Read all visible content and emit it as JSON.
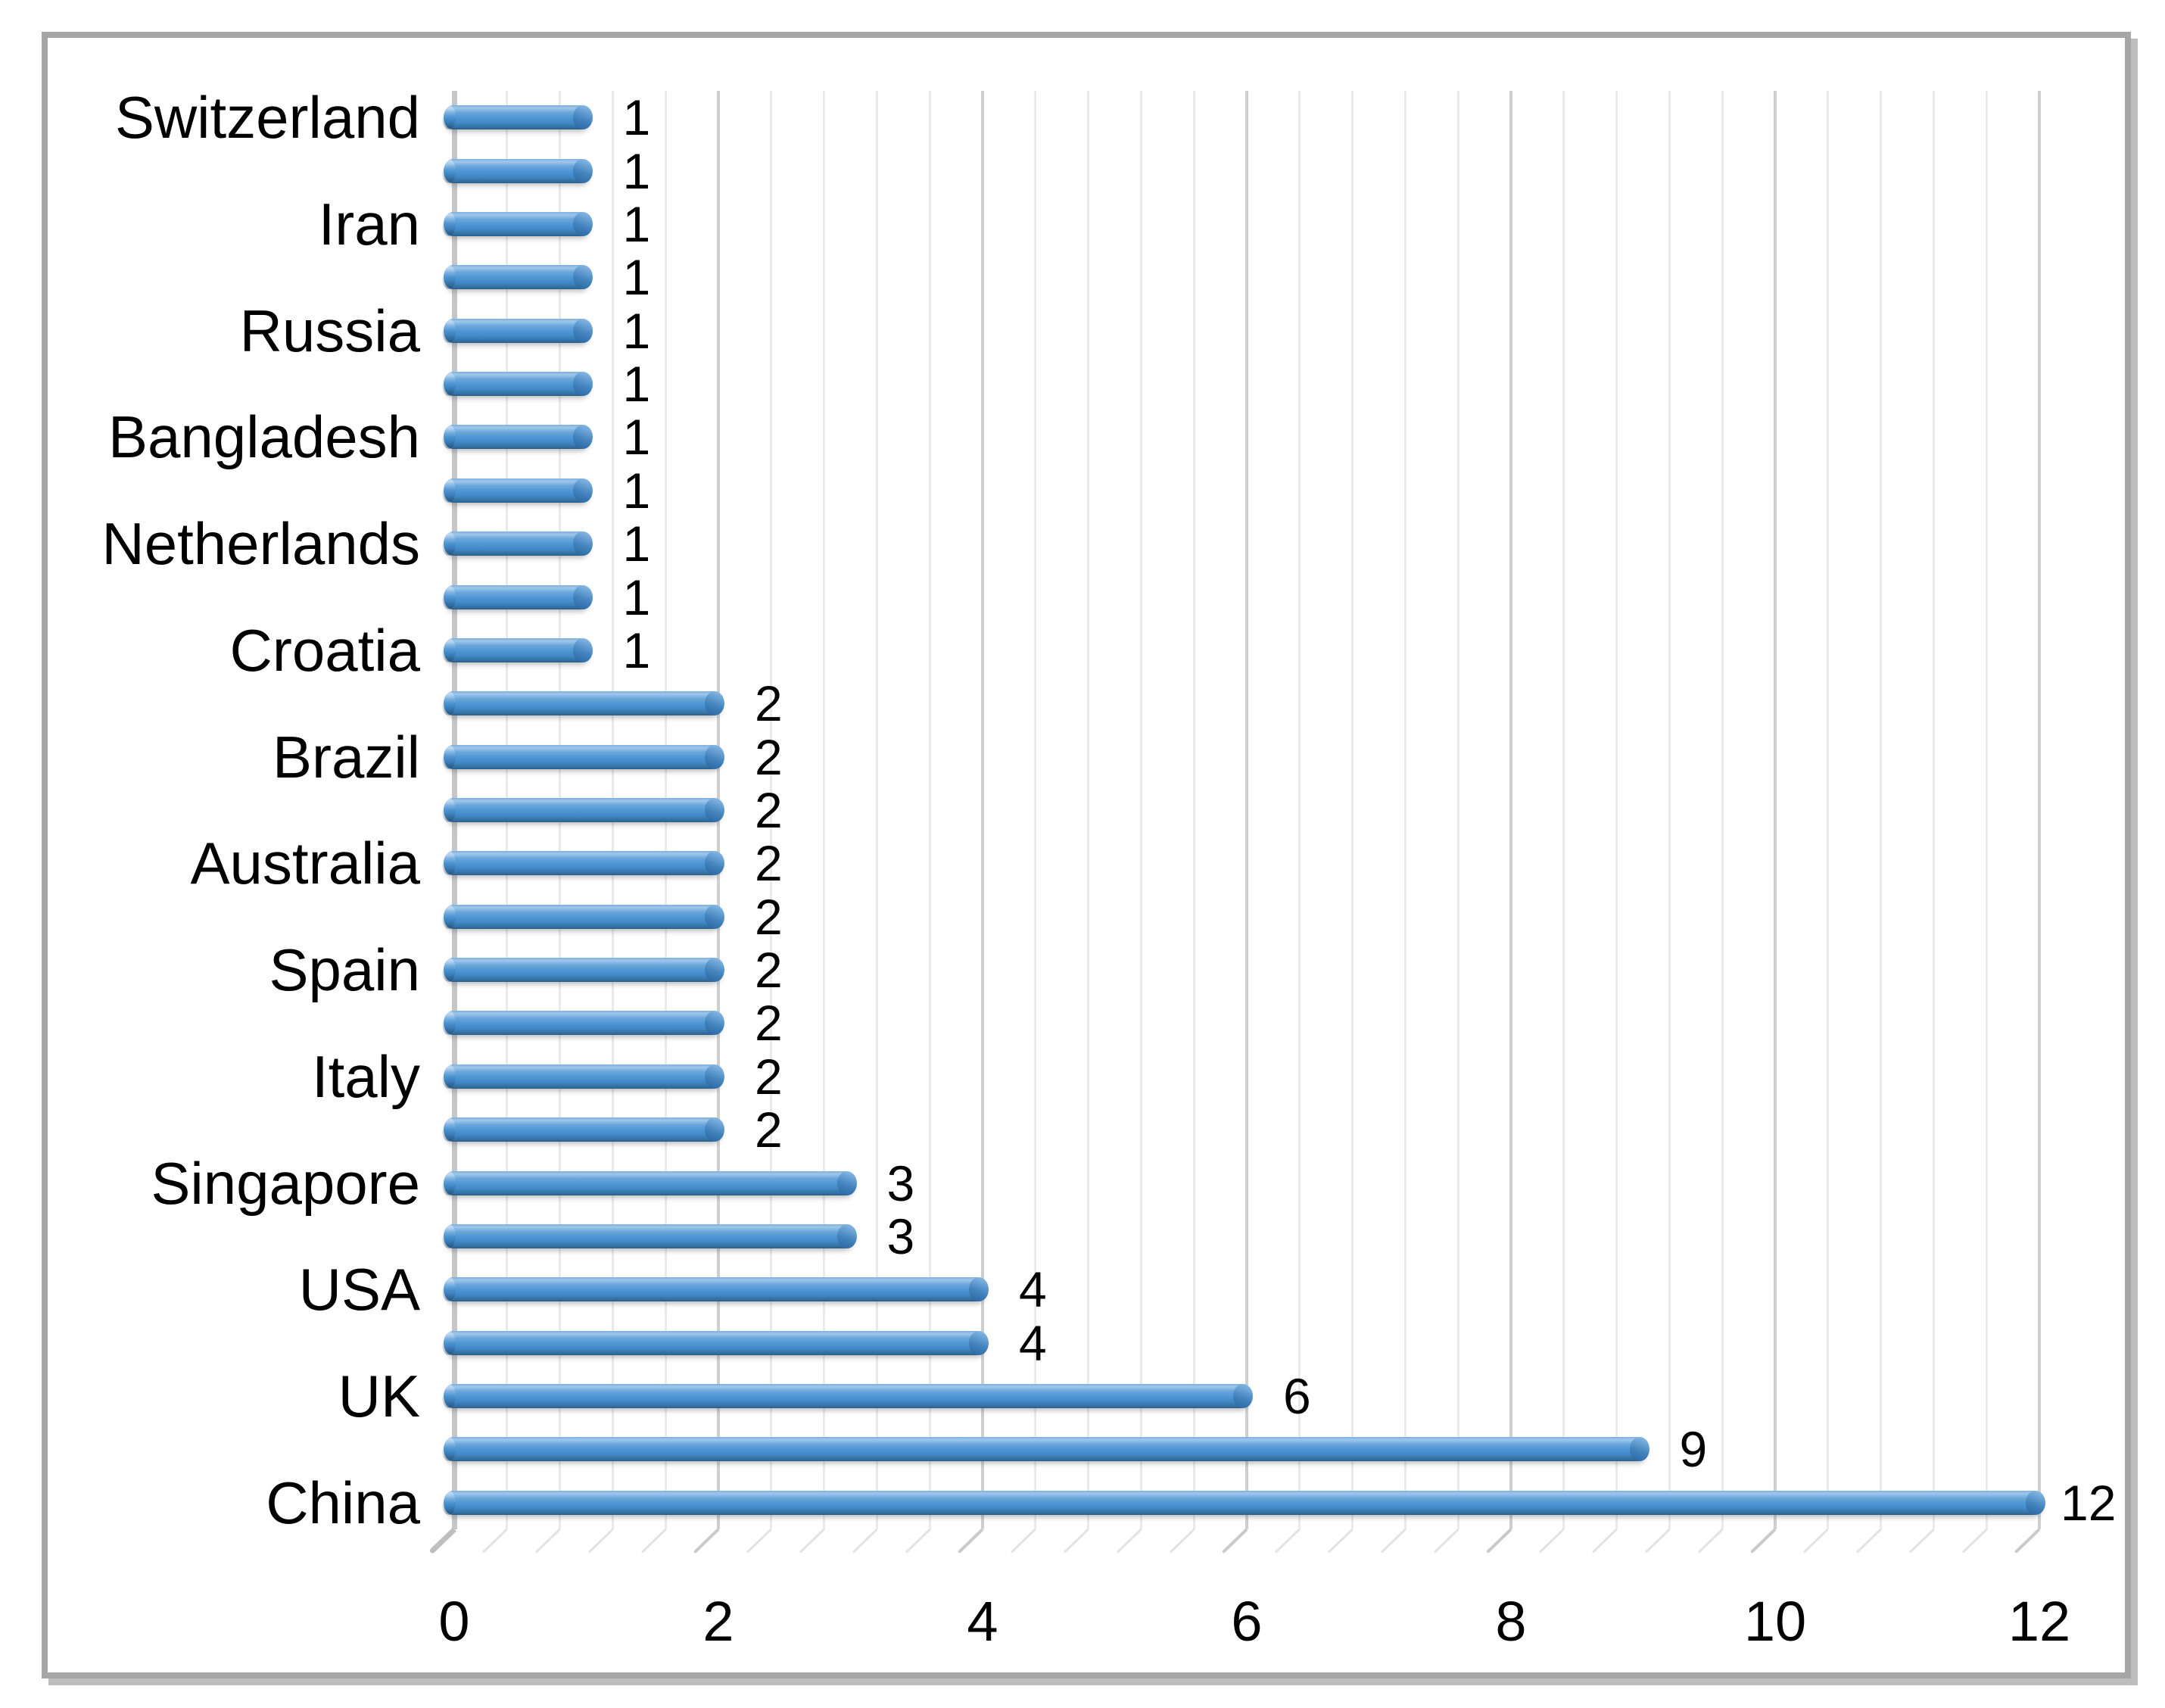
{
  "figure": {
    "title": "",
    "legend": "none",
    "background_color": "#ffffff",
    "frame_border_color": "#a6a6a6",
    "frame_shadow_color": "#bdbdbd",
    "text_color": "#000000"
  },
  "chart_data": {
    "type": "bar",
    "orientation": "horizontal",
    "title": "",
    "xlabel": "",
    "ylabel": "",
    "categories": [
      "Switzerland",
      "",
      "Iran",
      "",
      "Russia",
      "",
      "Bangladesh",
      "",
      "Netherlands",
      "",
      "Croatia",
      "",
      "Brazil",
      "",
      "Australia",
      "",
      "Spain",
      "",
      "Italy",
      "",
      "Singapore",
      "",
      "USA",
      "",
      "UK",
      "",
      "China"
    ],
    "values": [
      1,
      1,
      1,
      1,
      1,
      1,
      1,
      1,
      1,
      1,
      1,
      2,
      2,
      2,
      2,
      2,
      2,
      2,
      2,
      2,
      3,
      3,
      4,
      4,
      6,
      9,
      12
    ],
    "value_labels": [
      "1",
      "1",
      "1",
      "1",
      "1",
      "1",
      "1",
      "1",
      "1",
      "1",
      "1",
      "2",
      "2",
      "2",
      "2",
      "2",
      "2",
      "2",
      "2",
      "2",
      "3",
      "3",
      "4",
      "4",
      "6",
      "9",
      "12"
    ],
    "xlim": [
      0,
      12
    ],
    "x_ticks": [
      "0",
      "2",
      "4",
      "6",
      "8",
      "10",
      "12"
    ],
    "x_major_unit": 2,
    "x_minor_unit": 0.4,
    "grid": "vertical major and minor gridlines",
    "gridline_minor_color": "#eaeaea",
    "gridline_major_color": "#cfcfcf",
    "axis_line_color": "#c6c6c6",
    "bar_color": "#4e96d3",
    "bar_style": "cylinder",
    "value_label_position": "outside-end",
    "category_label_note": "only alternate bars are labeled on the category axis"
  }
}
